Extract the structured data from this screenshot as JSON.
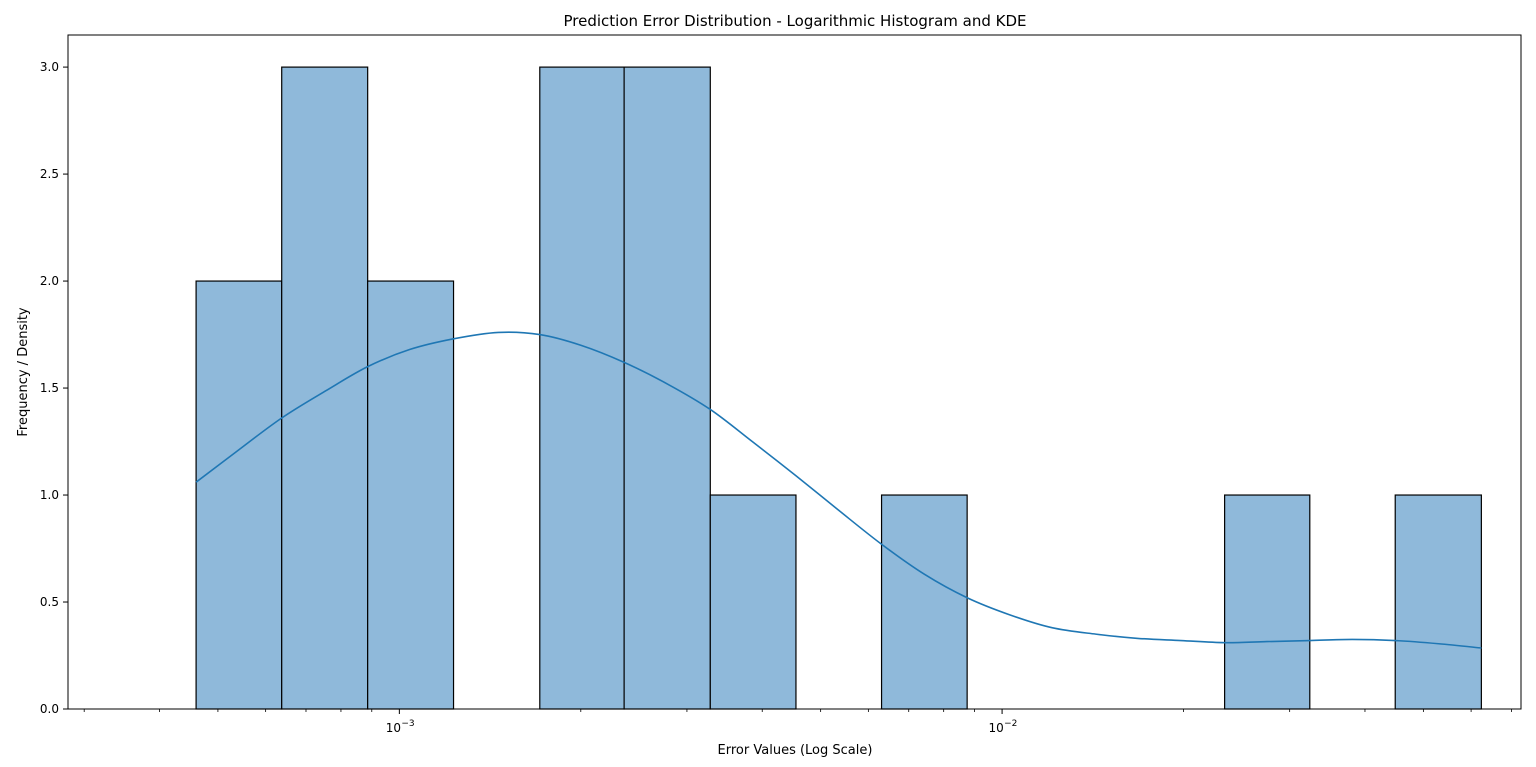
{
  "chart_data": {
    "type": "bar",
    "title": "Prediction Error Distribution - Logarithmic Histogram and KDE",
    "xlabel": "Error Values (Log Scale)",
    "ylabel": "Frequency / Density",
    "x_scale": "log",
    "xlim": [
      0.000282,
      0.0726
    ],
    "ylim": [
      0,
      3.15
    ],
    "x_tick_labels": [
      {
        "value": 0.001,
        "base": "10",
        "exp": "−3"
      },
      {
        "value": 0.01,
        "base": "10",
        "exp": "−2"
      }
    ],
    "y_ticks": [
      {
        "value": 0,
        "label": "0.0"
      },
      {
        "value": 0.5,
        "label": "0.5"
      },
      {
        "value": 1.0,
        "label": "1.0"
      },
      {
        "value": 1.5,
        "label": "1.5"
      },
      {
        "value": 2.0,
        "label": "2.0"
      },
      {
        "value": 2.5,
        "label": "2.5"
      },
      {
        "value": 3.0,
        "label": "3.0"
      }
    ],
    "bins": [
      {
        "x0": 0.00046,
        "x1": 0.000638,
        "count": 2
      },
      {
        "x0": 0.000638,
        "x1": 0.000886,
        "count": 3
      },
      {
        "x0": 0.000886,
        "x1": 0.00123,
        "count": 2
      },
      {
        "x0": 0.00123,
        "x1": 0.00171,
        "count": 0
      },
      {
        "x0": 0.00171,
        "x1": 0.00236,
        "count": 3
      },
      {
        "x0": 0.00236,
        "x1": 0.00328,
        "count": 3
      },
      {
        "x0": 0.00328,
        "x1": 0.00455,
        "count": 1
      },
      {
        "x0": 0.00455,
        "x1": 0.00631,
        "count": 0
      },
      {
        "x0": 0.00631,
        "x1": 0.00875,
        "count": 1
      },
      {
        "x0": 0.00875,
        "x1": 0.0121,
        "count": 0
      },
      {
        "x0": 0.0121,
        "x1": 0.0168,
        "count": 0
      },
      {
        "x0": 0.0168,
        "x1": 0.0234,
        "count": 0
      },
      {
        "x0": 0.0234,
        "x1": 0.0324,
        "count": 1
      },
      {
        "x0": 0.0324,
        "x1": 0.0449,
        "count": 0
      },
      {
        "x0": 0.0449,
        "x1": 0.0624,
        "count": 1
      }
    ],
    "kde": {
      "x": [
        0.00046,
        0.000535,
        0.000638,
        0.000758,
        0.000886,
        0.00104,
        0.00123,
        0.00146,
        0.00171,
        0.002,
        0.00236,
        0.00278,
        0.00328,
        0.00385,
        0.00455,
        0.00535,
        0.00631,
        0.00743,
        0.00875,
        0.0103,
        0.0121,
        0.0143,
        0.0168,
        0.0198,
        0.0234,
        0.0275,
        0.0324,
        0.0381,
        0.0449,
        0.053,
        0.0624
      ],
      "y": [
        1.06,
        1.2,
        1.36,
        1.49,
        1.6,
        1.68,
        1.73,
        1.76,
        1.75,
        1.7,
        1.62,
        1.52,
        1.4,
        1.25,
        1.09,
        0.93,
        0.77,
        0.63,
        0.52,
        0.44,
        0.38,
        0.35,
        0.33,
        0.32,
        0.31,
        0.315,
        0.32,
        0.325,
        0.32,
        0.305,
        0.285
      ]
    },
    "colors": {
      "bar_fill": "#8fb9da",
      "bar_edge": "#000000",
      "kde_line": "#1f77b4"
    },
    "grid": false,
    "legend": "none"
  }
}
